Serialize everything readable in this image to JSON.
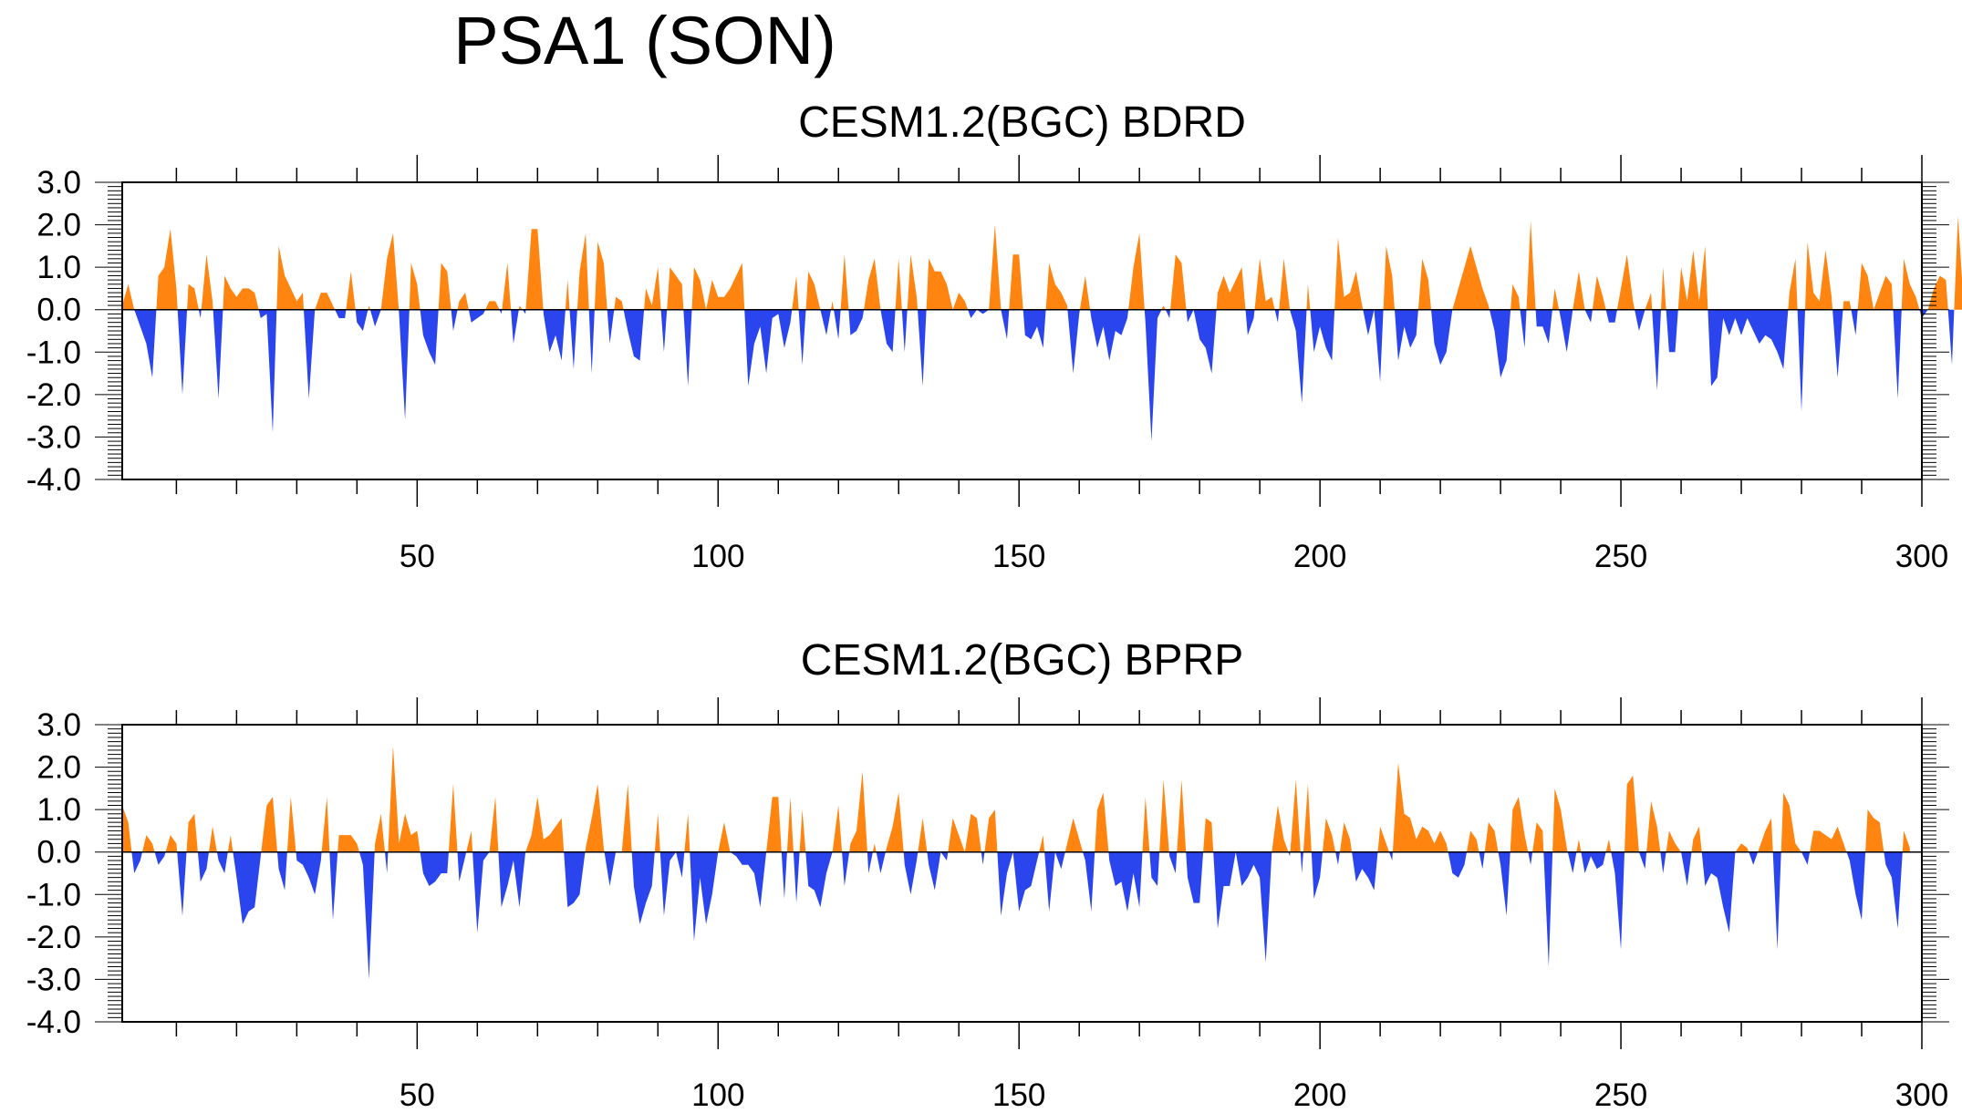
{
  "main_title": "PSA1 (SON)",
  "chart_data": [
    {
      "type": "area",
      "title": "CESM1.2(BGC) BDRD",
      "xlim": [
        1,
        300
      ],
      "ylim": [
        -4.0,
        3.0
      ],
      "x_ticks": [
        50,
        100,
        150,
        200,
        250,
        300
      ],
      "x_tick_labels": [
        "50",
        "100",
        "150",
        "200",
        "250",
        "300"
      ],
      "y_ticks": [
        3.0,
        2.0,
        1.0,
        0.0,
        -1.0,
        -2.0,
        -3.0,
        -4.0
      ],
      "y_tick_labels": [
        "3.0",
        "2.0",
        "1.0",
        "0.0",
        "-1.0",
        "-2.0",
        "-3.0",
        "-4.0"
      ],
      "positive_color": "#ff8410",
      "negative_color": "#2a44ee",
      "x_start": 1,
      "values": [
        0.1,
        0.6,
        0.0,
        -0.4,
        -0.8,
        -1.6,
        0.8,
        1.0,
        1.9,
        0.5,
        -2.0,
        0.6,
        0.5,
        -0.2,
        1.3,
        0.2,
        -2.1,
        0.8,
        0.5,
        0.3,
        0.5,
        0.5,
        0.4,
        -0.2,
        -0.1,
        -2.9,
        1.5,
        0.8,
        0.5,
        0.2,
        0.4,
        -2.1,
        0.0,
        0.4,
        0.4,
        0.1,
        -0.2,
        -0.2,
        0.9,
        -0.3,
        -0.5,
        0.1,
        -0.4,
        0.0,
        1.2,
        1.8,
        -0.1,
        -2.6,
        1.1,
        0.6,
        -0.6,
        -1.0,
        -1.3,
        1.1,
        0.9,
        -0.5,
        0.2,
        0.4,
        -0.3,
        -0.2,
        -0.1,
        0.2,
        0.2,
        -0.1,
        1.1,
        -0.8,
        0.1,
        -0.1,
        1.9,
        1.9,
        -0.1,
        -1.0,
        -0.6,
        -1.2,
        0.7,
        -1.4,
        0.9,
        1.8,
        -1.5,
        1.6,
        1.1,
        -0.8,
        0.3,
        0.2,
        -0.5,
        -1.1,
        -1.2,
        0.5,
        0.1,
        1.0,
        -1.0,
        1.0,
        0.8,
        0.6,
        -1.8,
        1.0,
        0.7,
        0.0,
        0.7,
        0.3,
        0.3,
        0.5,
        0.8,
        1.1,
        -1.8,
        -0.8,
        -0.4,
        -1.5,
        -0.2,
        -0.1,
        -0.9,
        -0.3,
        0.8,
        -1.3,
        0.9,
        0.6,
        0.0,
        -0.6,
        0.2,
        -0.7,
        1.3,
        -0.6,
        -0.5,
        -0.2,
        0.7,
        1.2,
        0.0,
        -0.8,
        -1.0,
        1.2,
        -1.0,
        1.3,
        0.3,
        -1.8,
        1.2,
        0.9,
        0.9,
        0.6,
        0.0,
        0.4,
        0.2,
        -0.2,
        0.0,
        -0.1,
        0.0,
        2.0,
        0.0,
        -0.7,
        1.3,
        1.3,
        -0.6,
        -0.7,
        -0.4,
        -0.9,
        1.1,
        0.6,
        0.4,
        0.1,
        -1.5,
        -0.1,
        0.8,
        -0.2,
        -0.9,
        -0.4,
        -1.2,
        -0.5,
        -0.6,
        -0.2,
        1.0,
        1.8,
        -0.3,
        -3.1,
        -0.2,
        0.1,
        -0.2,
        1.3,
        1.1,
        -0.3,
        0.0,
        -0.7,
        -0.9,
        -1.5,
        0.4,
        0.8,
        0.4,
        0.7,
        1.0,
        -0.6,
        -0.2,
        1.2,
        0.2,
        0.3,
        -0.3,
        1.2,
        0.0,
        -0.5,
        -2.2,
        0.6,
        -1.0,
        -0.4,
        -0.9,
        -1.2,
        1.7,
        0.3,
        0.4,
        0.9,
        0.1,
        -0.6,
        0.0,
        -1.7,
        1.5,
        0.8,
        -1.2,
        -0.4,
        -0.9,
        -0.6,
        1.2,
        0.7,
        -0.8,
        -1.3,
        -1.0,
        0.0,
        0.5,
        1.0,
        1.5,
        1.0,
        0.5,
        0.1,
        -0.5,
        -1.6,
        -1.2,
        0.6,
        0.3,
        -0.9,
        2.1,
        -0.4,
        -0.4,
        -0.8,
        0.5,
        -0.2,
        -1.0,
        0.0,
        0.9,
        0.0,
        -0.3,
        0.8,
        0.3,
        -0.3,
        -0.3,
        0.5,
        1.3,
        0.2,
        -0.5,
        0.0,
        0.4,
        -1.9,
        1.0,
        -1.0,
        -1.0,
        1.0,
        0.2,
        1.4,
        0.2,
        1.5,
        -1.8,
        -1.6,
        -0.2,
        -0.6,
        -0.2,
        -0.6,
        -0.2,
        -0.5,
        -0.8,
        -0.6,
        -0.7,
        -1.0,
        -1.4,
        0.4,
        1.2,
        -2.4,
        1.6,
        0.4,
        0.2,
        1.4,
        0.3,
        -1.6,
        0.2,
        0.2,
        -0.6,
        1.1,
        0.8,
        0.0,
        0.4,
        0.8,
        0.6,
        -2.1,
        1.2,
        0.6,
        0.3,
        -0.2,
        0.0,
        0.5,
        0.8,
        0.7,
        -1.3,
        2.2,
        0.0
      ]
    },
    {
      "type": "area",
      "title": "CESM1.2(BGC) BPRP",
      "xlim": [
        1,
        300
      ],
      "ylim": [
        -4.0,
        3.0
      ],
      "x_ticks": [
        50,
        100,
        150,
        200,
        250,
        300
      ],
      "x_tick_labels": [
        "50",
        "100",
        "150",
        "200",
        "250",
        "300"
      ],
      "y_ticks": [
        3.0,
        2.0,
        1.0,
        0.0,
        -1.0,
        -2.0,
        -3.0,
        -4.0
      ],
      "y_tick_labels": [
        "3.0",
        "2.0",
        "1.0",
        "0.0",
        "-1.0",
        "-2.0",
        "-3.0",
        "-4.0"
      ],
      "positive_color": "#ff8410",
      "negative_color": "#2a44ee",
      "x_start": 1,
      "values": [
        1.1,
        0.7,
        -0.5,
        -0.2,
        0.4,
        0.2,
        -0.3,
        -0.1,
        0.4,
        0.2,
        -1.5,
        0.7,
        0.9,
        -0.7,
        -0.4,
        0.6,
        -0.2,
        -0.5,
        0.4,
        -0.6,
        -1.7,
        -1.4,
        -1.3,
        -0.1,
        1.1,
        1.3,
        -0.4,
        -0.9,
        1.3,
        -0.2,
        -0.3,
        -0.6,
        -1.0,
        -0.2,
        1.3,
        -1.6,
        0.4,
        0.4,
        0.4,
        0.2,
        -0.3,
        -3.0,
        0.2,
        0.9,
        -0.5,
        2.5,
        0.2,
        0.9,
        0.4,
        0.5,
        -0.5,
        -0.8,
        -0.7,
        -0.5,
        -0.5,
        1.6,
        -0.7,
        -0.1,
        0.5,
        -1.9,
        -0.2,
        0.0,
        1.3,
        -1.3,
        -0.8,
        -0.2,
        -1.3,
        0.0,
        0.4,
        1.3,
        0.3,
        0.4,
        0.6,
        0.8,
        -1.3,
        -1.2,
        -1.0,
        0.1,
        0.8,
        1.6,
        0.1,
        -0.8,
        0.0,
        0.0,
        1.6,
        -0.8,
        -1.7,
        -1.2,
        -0.8,
        0.9,
        -1.5,
        -0.2,
        0.0,
        -0.6,
        0.9,
        -2.1,
        -0.6,
        -1.7,
        -1.0,
        0.0,
        0.7,
        0.0,
        -0.1,
        -0.3,
        -0.3,
        -0.5,
        -1.3,
        0.0,
        1.3,
        1.3,
        -1.1,
        1.3,
        -1.2,
        1.0,
        -0.8,
        -0.9,
        -1.3,
        -0.5,
        0.0,
        1.1,
        -0.8,
        0.2,
        0.5,
        1.9,
        -0.5,
        0.2,
        -0.5,
        0.1,
        0.6,
        1.4,
        -0.3,
        -1.0,
        -0.2,
        0.8,
        -0.3,
        -0.9,
        0.0,
        -0.2,
        0.8,
        0.4,
        0.0,
        0.9,
        0.8,
        -0.3,
        0.8,
        1.0,
        -1.5,
        -0.5,
        0.0,
        -1.4,
        -0.9,
        -0.8,
        -0.2,
        0.4,
        -1.4,
        0.0,
        -0.4,
        0.2,
        0.8,
        0.3,
        -0.2,
        -1.4,
        1.0,
        1.4,
        -0.2,
        -0.8,
        -0.7,
        -1.4,
        -0.5,
        -1.3,
        1.3,
        -0.6,
        -0.8,
        1.7,
        -0.1,
        -0.5,
        1.7,
        -0.6,
        -1.2,
        -1.2,
        0.8,
        0.7,
        -1.8,
        -0.8,
        -0.8,
        0.0,
        -0.8,
        -0.6,
        -0.3,
        -0.6,
        -2.6,
        0.0,
        1.1,
        0.3,
        -0.1,
        1.7,
        -0.5,
        1.6,
        -1.1,
        -0.6,
        0.8,
        0.4,
        -0.3,
        0.7,
        0.3,
        -0.7,
        -0.4,
        -0.6,
        -0.9,
        0.6,
        0.2,
        -0.2,
        2.1,
        0.9,
        0.8,
        0.3,
        0.6,
        0.5,
        0.2,
        0.5,
        0.2,
        -0.5,
        -0.6,
        -0.3,
        0.5,
        0.3,
        -0.4,
        0.7,
        0.5,
        -0.3,
        -1.5,
        1.0,
        1.3,
        0.4,
        -0.3,
        0.7,
        0.5,
        -2.7,
        1.5,
        1.0,
        0.1,
        -0.5,
        0.3,
        -0.5,
        -0.1,
        -0.4,
        -0.3,
        0.3,
        -0.5,
        -2.3,
        1.6,
        1.8,
        0.0,
        -0.4,
        1.2,
        0.6,
        -0.5,
        0.5,
        0.2,
        0.0,
        -0.8,
        0.3,
        0.6,
        -0.8,
        -0.5,
        -0.6,
        -1.3,
        -1.9,
        0.0,
        0.2,
        0.1,
        -0.3,
        0.1,
        0.5,
        0.8,
        -2.3,
        1.4,
        1.1,
        0.2,
        0.0,
        -0.3,
        0.5,
        0.5,
        0.4,
        0.3,
        0.6,
        0.2,
        -0.2,
        -1.0,
        -1.6,
        1.0,
        0.8,
        0.7,
        -0.3,
        -0.6,
        -1.8,
        0.5,
        0.1
      ]
    }
  ]
}
